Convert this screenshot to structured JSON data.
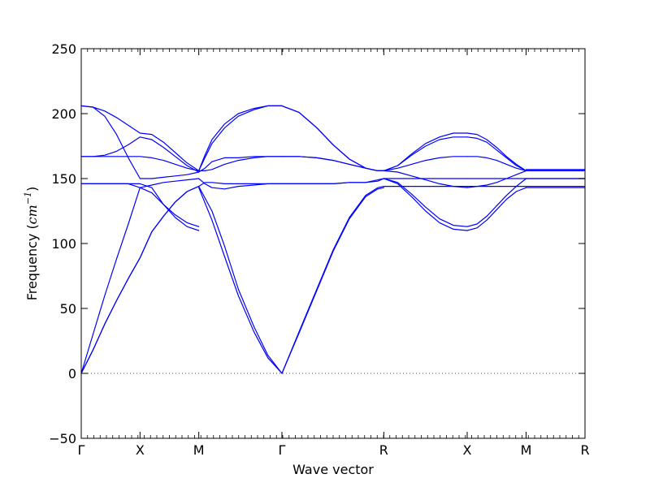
{
  "chart_data": {
    "type": "line",
    "title": "",
    "xlabel": "Wave vector",
    "ylabel": "Frequency (cm⁻¹)",
    "ylabel_parts": {
      "text": "Frequency (",
      "unit_main": "cm",
      "unit_sup": "−1",
      "close": ")"
    },
    "ylim": [
      -50,
      250
    ],
    "yticks": [
      -50,
      0,
      50,
      100,
      150,
      200,
      250
    ],
    "xlim": [
      0,
      1.0
    ],
    "xticks": [
      {
        "pos": 0.0,
        "label": "Γ"
      },
      {
        "pos": 0.1167,
        "label": "X"
      },
      {
        "pos": 0.2333,
        "label": "M"
      },
      {
        "pos": 0.3984,
        "label": "Γ"
      },
      {
        "pos": 0.6006,
        "label": "R"
      },
      {
        "pos": 0.7661,
        "label": "X"
      },
      {
        "pos": 0.8831,
        "label": "M"
      },
      {
        "pos": 1.0,
        "label": "R"
      }
    ],
    "zero_line": 0,
    "line_color": "#0000ff",
    "series": [
      {
        "x": [
          0.0,
          0.0233,
          0.0467,
          0.07,
          0.0934,
          0.1167,
          0.14,
          0.1633,
          0.1867,
          0.21,
          0.2333
        ],
        "y": [
          0,
          18,
          38,
          56,
          73,
          89,
          109,
          121,
          132,
          140,
          144
        ]
      },
      {
        "x": [
          0.0,
          0.0233,
          0.0467,
          0.07,
          0.0934,
          0.1167,
          0.14,
          0.1633,
          0.1867,
          0.21,
          0.2333
        ],
        "y": [
          0,
          18,
          38,
          56,
          73,
          89,
          109,
          121,
          132,
          140,
          144
        ]
      },
      {
        "x": [
          0.0,
          0.0233,
          0.0467,
          0.07,
          0.0934,
          0.1167,
          0.14,
          0.1633,
          0.1867,
          0.21,
          0.2333
        ],
        "y": [
          0,
          30,
          60,
          88,
          115,
          143,
          145,
          147,
          148,
          149,
          150
        ]
      },
      {
        "x": [
          0.0,
          0.0233,
          0.0467,
          0.07,
          0.0934,
          0.1167,
          0.14,
          0.1633,
          0.1867,
          0.21,
          0.2333
        ],
        "y": [
          146,
          146,
          146,
          146,
          146,
          143,
          139,
          130,
          122,
          116,
          113
        ]
      },
      {
        "x": [
          0.0,
          0.0233,
          0.0467,
          0.07,
          0.0934,
          0.1167,
          0.14,
          0.1633,
          0.1867,
          0.21,
          0.2333
        ],
        "y": [
          146,
          146,
          146,
          146,
          146,
          146,
          143,
          130,
          120,
          113,
          110
        ]
      },
      {
        "x": [
          0.0,
          0.0233,
          0.0467,
          0.07,
          0.0934,
          0.1167,
          0.14,
          0.1633,
          0.1867,
          0.21,
          0.2333
        ],
        "y": [
          167,
          167,
          167,
          167,
          167,
          167,
          166,
          164,
          161,
          158,
          156
        ]
      },
      {
        "x": [
          0.0,
          0.0233,
          0.0467,
          0.07,
          0.0934,
          0.1167,
          0.14,
          0.1633,
          0.1867,
          0.21,
          0.2333
        ],
        "y": [
          167,
          167,
          168,
          171,
          176,
          182,
          180,
          174,
          167,
          160,
          155
        ]
      },
      {
        "x": [
          0.0,
          0.0233,
          0.0467,
          0.07,
          0.0934,
          0.1167,
          0.14,
          0.1633,
          0.1867,
          0.21,
          0.2333
        ],
        "y": [
          206,
          205,
          198,
          184,
          166,
          150,
          150,
          151,
          152,
          153,
          155
        ]
      },
      {
        "x": [
          0.0,
          0.0233,
          0.0467,
          0.07,
          0.0934,
          0.1167,
          0.14,
          0.1633,
          0.1867,
          0.21,
          0.2333
        ],
        "y": [
          206,
          205,
          202,
          197,
          191,
          185,
          184,
          178,
          170,
          162,
          156
        ]
      },
      {
        "x": [
          0.2333,
          0.2595,
          0.2845,
          0.3117,
          0.3428,
          0.3704,
          0.3984
        ],
        "y": [
          144,
          125,
          98,
          65,
          36,
          14,
          0
        ]
      },
      {
        "x": [
          0.2333,
          0.2595,
          0.2845,
          0.3117,
          0.3428,
          0.3704,
          0.3984
        ],
        "y": [
          143,
          118,
          90,
          60,
          32,
          12,
          0
        ]
      },
      {
        "x": [
          0.2333,
          0.2455,
          0.2595,
          0.2845,
          0.3117,
          0.3428,
          0.3704,
          0.3984
        ],
        "y": [
          150,
          146,
          143,
          142,
          144,
          145,
          146,
          146
        ]
      },
      {
        "x": [
          0.2333,
          0.2455,
          0.2595,
          0.2845,
          0.3117,
          0.3428,
          0.3704,
          0.3984
        ],
        "y": [
          144,
          147,
          147,
          146,
          146,
          146,
          146,
          146
        ]
      },
      {
        "x": [
          0.2333,
          0.2455,
          0.2595,
          0.2845,
          0.3117,
          0.3428,
          0.3704,
          0.3984
        ],
        "y": [
          155,
          158,
          163,
          166,
          166,
          167,
          167,
          167
        ]
      },
      {
        "x": [
          0.2333,
          0.2455,
          0.2595,
          0.2845,
          0.3117,
          0.3428,
          0.3704,
          0.3984
        ],
        "y": [
          156,
          156,
          157,
          161,
          164,
          166,
          167,
          167
        ]
      },
      {
        "x": [
          0.2333,
          0.2455,
          0.2595,
          0.2845,
          0.3117,
          0.3428,
          0.3704,
          0.3984
        ],
        "y": [
          156,
          168,
          180,
          192,
          200,
          204,
          206,
          206
        ]
      },
      {
        "x": [
          0.2333,
          0.2455,
          0.2595,
          0.2845,
          0.3117,
          0.3428,
          0.3704,
          0.3984
        ],
        "y": [
          156,
          166,
          177,
          189,
          198,
          203,
          206,
          206
        ]
      },
      {
        "x": [
          0.3984,
          0.4323,
          0.4678,
          0.5,
          0.5322,
          0.5644,
          0.5887,
          0.6006
        ],
        "y": [
          0,
          32,
          65,
          95,
          120,
          137,
          143,
          144
        ]
      },
      {
        "x": [
          0.3984,
          0.4323,
          0.4678,
          0.5,
          0.5322,
          0.5644,
          0.5887,
          0.6006
        ],
        "y": [
          0,
          31,
          64,
          94,
          119,
          136,
          142,
          143
        ]
      },
      {
        "x": [
          0.3984,
          0.4323,
          0.4678,
          0.5,
          0.5322,
          0.5644,
          0.5887,
          0.6006
        ],
        "y": [
          146,
          146,
          146,
          146,
          147,
          147,
          149,
          150
        ]
      },
      {
        "x": [
          0.3984,
          0.4323,
          0.4678,
          0.5,
          0.5322,
          0.5644,
          0.5887,
          0.6006
        ],
        "y": [
          146,
          146,
          146,
          146,
          147,
          147,
          148,
          150
        ]
      },
      {
        "x": [
          0.3984,
          0.4323,
          0.4678,
          0.5,
          0.5322,
          0.5644,
          0.5887,
          0.6006
        ],
        "y": [
          167,
          167,
          166,
          164,
          161,
          158,
          156,
          156
        ]
      },
      {
        "x": [
          0.3984,
          0.4323,
          0.4678,
          0.5,
          0.5322,
          0.5644,
          0.5887,
          0.6006
        ],
        "y": [
          167,
          167,
          166,
          164,
          161,
          158,
          156,
          156
        ]
      },
      {
        "x": [
          0.3984,
          0.4323,
          0.4678,
          0.5,
          0.5322,
          0.5644,
          0.5887,
          0.6006
        ],
        "y": [
          206,
          201,
          189,
          176,
          165,
          158,
          156,
          156
        ]
      },
      {
        "x": [
          0.3984,
          0.4323,
          0.4678,
          0.5,
          0.5322,
          0.5644,
          0.5887,
          0.6006
        ],
        "y": [
          206,
          201,
          189,
          176,
          165,
          158,
          156,
          156
        ]
      },
      {
        "x": [
          0.6006,
          0.6283,
          0.6559,
          0.6836,
          0.7112,
          0.7388,
          0.7661
        ],
        "y": [
          144,
          144,
          144,
          144,
          144,
          144,
          144
        ]
      },
      {
        "x": [
          0.6006,
          0.6283,
          0.6559,
          0.6836,
          0.7112,
          0.7388,
          0.7661
        ],
        "y": [
          150,
          150,
          150,
          150,
          150,
          150,
          150
        ]
      },
      {
        "x": [
          0.6006,
          0.6283,
          0.6559,
          0.6836,
          0.7112,
          0.7388,
          0.7661
        ],
        "y": [
          150,
          146,
          136,
          125,
          116,
          111,
          110
        ]
      },
      {
        "x": [
          0.6006,
          0.6283,
          0.6559,
          0.6836,
          0.7112,
          0.7388,
          0.7661
        ],
        "y": [
          150,
          147,
          138,
          128,
          119,
          114,
          113
        ]
      },
      {
        "x": [
          0.6006,
          0.6283,
          0.6559,
          0.6836,
          0.7112,
          0.7388,
          0.7661
        ],
        "y": [
          156,
          155,
          152,
          149,
          146,
          144,
          143
        ]
      },
      {
        "x": [
          0.6006,
          0.6283,
          0.6559,
          0.6836,
          0.7112,
          0.7388,
          0.7661
        ],
        "y": [
          156,
          158,
          161,
          164,
          166,
          167,
          167
        ]
      },
      {
        "x": [
          0.6006,
          0.6283,
          0.6559,
          0.6836,
          0.7112,
          0.7388,
          0.7661
        ],
        "y": [
          156,
          160,
          168,
          175,
          180,
          182,
          182
        ]
      },
      {
        "x": [
          0.6006,
          0.6283,
          0.6559,
          0.6836,
          0.7112,
          0.7388,
          0.7661
        ],
        "y": [
          156,
          160,
          169,
          177,
          182,
          185,
          185
        ]
      },
      {
        "x": [
          0.7661,
          0.7856,
          0.805,
          0.8246,
          0.8441,
          0.8636,
          0.8831
        ],
        "y": [
          144,
          144,
          144,
          144,
          144,
          144,
          144
        ]
      },
      {
        "x": [
          0.7661,
          0.7856,
          0.805,
          0.8246,
          0.8441,
          0.8636,
          0.8831
        ],
        "y": [
          150,
          150,
          150,
          150,
          150,
          150,
          150
        ]
      },
      {
        "x": [
          0.7661,
          0.7856,
          0.805,
          0.8246,
          0.8441,
          0.8636,
          0.8831
        ],
        "y": [
          110,
          112,
          118,
          126,
          134,
          140,
          143
        ]
      },
      {
        "x": [
          0.7661,
          0.7856,
          0.805,
          0.8246,
          0.8441,
          0.8636,
          0.8831
        ],
        "y": [
          113,
          115,
          121,
          129,
          137,
          144,
          150
        ]
      },
      {
        "x": [
          0.7661,
          0.7856,
          0.805,
          0.8246,
          0.8441,
          0.8636,
          0.8831
        ],
        "y": [
          143,
          144,
          145,
          147,
          150,
          153,
          156
        ]
      },
      {
        "x": [
          0.7661,
          0.7856,
          0.805,
          0.8246,
          0.8441,
          0.8636,
          0.8831
        ],
        "y": [
          167,
          167,
          166,
          164,
          161,
          158,
          156
        ]
      },
      {
        "x": [
          0.7661,
          0.7856,
          0.805,
          0.8246,
          0.8441,
          0.8636,
          0.8831
        ],
        "y": [
          182,
          181,
          178,
          172,
          166,
          160,
          156
        ]
      },
      {
        "x": [
          0.7661,
          0.7856,
          0.805,
          0.8246,
          0.8441,
          0.8636,
          0.8831
        ],
        "y": [
          185,
          184,
          180,
          174,
          167,
          161,
          156
        ]
      },
      {
        "x": [
          0.8831,
          1.0
        ],
        "y": [
          143,
          143
        ]
      },
      {
        "x": [
          0.8831,
          1.0
        ],
        "y": [
          144,
          144
        ]
      },
      {
        "x": [
          0.8831,
          1.0
        ],
        "y": [
          150,
          150
        ]
      },
      {
        "x": [
          0.8831,
          1.0
        ],
        "y": [
          150,
          150
        ]
      },
      {
        "x": [
          0.8831,
          1.0
        ],
        "y": [
          156,
          156
        ]
      },
      {
        "x": [
          0.8831,
          1.0
        ],
        "y": [
          156,
          156
        ]
      },
      {
        "x": [
          0.8831,
          1.0
        ],
        "y": [
          156,
          156
        ]
      },
      {
        "x": [
          0.8831,
          1.0
        ],
        "y": [
          156,
          156
        ]
      },
      {
        "x": [
          0.8831,
          1.0
        ],
        "y": [
          157,
          157
        ]
      }
    ]
  }
}
